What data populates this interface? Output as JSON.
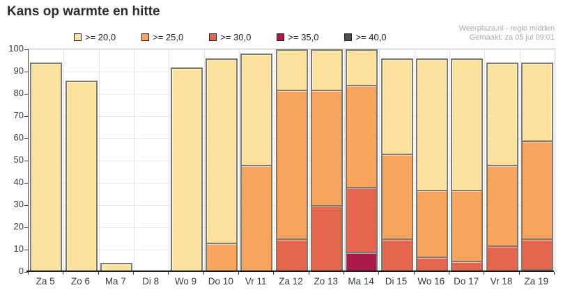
{
  "title": "Kans op warmte en hitte",
  "watermark": {
    "line1": "Weerplaza.nl - regio midden",
    "line2": "Gemaakt: za 05 jul 09:01"
  },
  "chart_data": {
    "type": "bar",
    "stacking": "overlay-thresholds",
    "title": "Kans op warmte en hitte",
    "xlabel": "",
    "ylabel": "",
    "ylim": [
      0,
      100
    ],
    "yticks": [
      0,
      10,
      20,
      30,
      40,
      50,
      60,
      70,
      80,
      90,
      100
    ],
    "grid": true,
    "legend_position": "top",
    "categories": [
      "Za 5",
      "Zo 6",
      "Ma 7",
      "Di 8",
      "Wo 9",
      "Do 10",
      "Vr 11",
      "Za 12",
      "Zo 13",
      "Ma 14",
      "Di 15",
      "Wo 16",
      "Do 17",
      "Vr 18",
      "Za 19"
    ],
    "series": [
      {
        "name": ">= 20,0",
        "color": "#FBE19B",
        "values": [
          94,
          86,
          4,
          0,
          92,
          96,
          98,
          100,
          100,
          100,
          96,
          96,
          96,
          94,
          94
        ]
      },
      {
        "name": ">= 25,0",
        "color": "#F9A45C",
        "values": [
          0,
          0,
          0,
          0,
          0,
          13,
          48,
          82,
          82,
          84,
          53,
          37,
          37,
          48,
          59
        ]
      },
      {
        "name": ">= 30,0",
        "color": "#E5664C",
        "values": [
          0,
          0,
          0,
          0,
          0,
          0,
          0,
          15,
          30,
          38,
          15,
          7,
          5,
          12,
          15
        ]
      },
      {
        "name": ">= 35,0",
        "color": "#AA1A4D",
        "values": [
          0,
          0,
          0,
          0,
          0,
          0,
          0,
          0,
          0,
          9,
          0,
          0,
          0,
          0,
          1
        ]
      },
      {
        "name": ">= 40,0",
        "color": "#4D4D4D",
        "values": [
          0,
          0,
          0,
          0,
          0,
          0,
          0,
          0,
          0,
          0,
          0,
          0,
          0,
          0,
          0
        ]
      }
    ]
  }
}
